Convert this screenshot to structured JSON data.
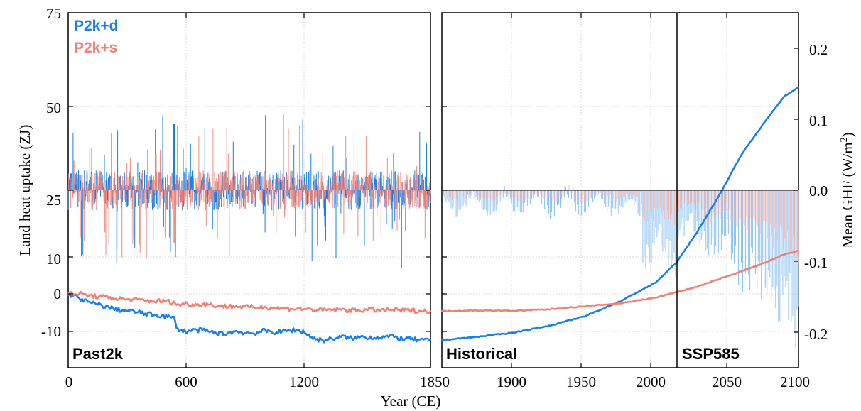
{
  "chart_data": {
    "type": "line",
    "xlabel": "Year (CE)",
    "ylabel_left": "Land heat uptake (ZJ)",
    "ylabel_right_main": "Mean GHF (W/m",
    "ylabel_right_sup": "2",
    "ylabel_right_end": ")",
    "legend": [
      {
        "name": "P2k+d",
        "color": "#1a7fe8"
      },
      {
        "name": "P2k+s",
        "color": "#f08074"
      }
    ],
    "legend_placement": "top-left",
    "grid": true,
    "colors": {
      "blue": "#1a7fe8",
      "salmon": "#f08074",
      "light_blue": "#8ec3f5",
      "light_salmon": "#f4b0a8"
    },
    "panels": [
      {
        "label": "Past2k",
        "xlim": [
          0,
          1850
        ],
        "xticks": [
          0,
          600,
          1200
        ]
      },
      {
        "label": "Historical",
        "xlim": [
          1850,
          2015
        ],
        "xticks": [
          1850,
          1900,
          1950,
          2000
        ]
      },
      {
        "label": "SSP585",
        "xlim": [
          2015,
          2100
        ],
        "xticks": [
          2050,
          2100
        ]
      }
    ],
    "left_axis": {
      "ticks": [
        "75",
        "50",
        "25",
        "10",
        "0",
        "-10"
      ],
      "cumulative_range": [
        -15,
        15
      ],
      "flux_range_upper": [
        -0.8,
        0.8
      ]
    },
    "right_axis": {
      "ticks": [
        "0.2",
        "0.1",
        "0.0",
        "-0.1",
        "-0.2"
      ],
      "ylim": [
        -0.25,
        0.25
      ]
    },
    "cumulative_series": [
      {
        "name": "P2k+d",
        "x": [
          0,
          50,
          100,
          150,
          200,
          250,
          300,
          350,
          400,
          450,
          500,
          540,
          560,
          600,
          650,
          700,
          750,
          800,
          850,
          900,
          950,
          1000,
          1050,
          1100,
          1150,
          1200,
          1250,
          1300,
          1350,
          1400,
          1450,
          1500,
          1550,
          1600,
          1650,
          1700,
          1750,
          1800,
          1850,
          1875,
          1900,
          1925,
          1950,
          1975,
          2000,
          2015,
          2030,
          2045,
          2060,
          2075,
          2090,
          2100
        ],
        "y": [
          0,
          -1.0,
          -2.2,
          -2.8,
          -3.5,
          -4.2,
          -4.5,
          -4.8,
          -5.4,
          -5.6,
          -6.0,
          -6.5,
          -9.5,
          -10.0,
          -9.6,
          -9.8,
          -10.4,
          -10.6,
          -10.0,
          -10.3,
          -10.5,
          -9.8,
          -10.2,
          -10.0,
          -9.6,
          -10.0,
          -11.8,
          -12.4,
          -11.9,
          -11.4,
          -11.9,
          -11.4,
          -11.6,
          -11.5,
          -11.3,
          -11.9,
          -12.0,
          -12.4,
          -12.3,
          -11.4,
          -10.3,
          -8.5,
          -6.0,
          -2.0,
          3.0,
          8.5,
          17.0,
          26.5,
          37.0,
          45.0,
          52.5,
          55.0
        ]
      },
      {
        "name": "P2k+s",
        "x": [
          0,
          50,
          100,
          150,
          200,
          250,
          300,
          350,
          400,
          450,
          500,
          540,
          560,
          600,
          650,
          700,
          750,
          800,
          850,
          900,
          950,
          1000,
          1050,
          1100,
          1150,
          1200,
          1250,
          1300,
          1350,
          1400,
          1450,
          1500,
          1550,
          1600,
          1650,
          1700,
          1750,
          1800,
          1850,
          1875,
          1900,
          1925,
          1950,
          1975,
          2000,
          2015,
          2030,
          2045,
          2060,
          2075,
          2090,
          2100
        ],
        "y": [
          0,
          0.1,
          -0.4,
          -0.7,
          -1.0,
          -1.2,
          -1.5,
          -1.6,
          -1.8,
          -1.9,
          -1.9,
          -2.4,
          -2.9,
          -2.6,
          -2.9,
          -2.7,
          -3.1,
          -3.3,
          -3.3,
          -3.5,
          -3.5,
          -3.5,
          -3.7,
          -3.9,
          -3.9,
          -4.0,
          -4.2,
          -4.4,
          -4.2,
          -4.2,
          -4.4,
          -4.3,
          -4.2,
          -4.4,
          -4.2,
          -4.4,
          -4.4,
          -4.5,
          -4.6,
          -4.4,
          -4.5,
          -4.1,
          -3.3,
          -2.5,
          -1.0,
          0.5,
          2.0,
          4.0,
          6.0,
          8.0,
          10.5,
          11.5
        ]
      }
    ],
    "annual_flux": [
      {
        "name": "P2k+d",
        "typical_range": [
          -0.4,
          0.4
        ],
        "max_past2k": 0.75,
        "min_future": -0.2
      }
    ]
  }
}
